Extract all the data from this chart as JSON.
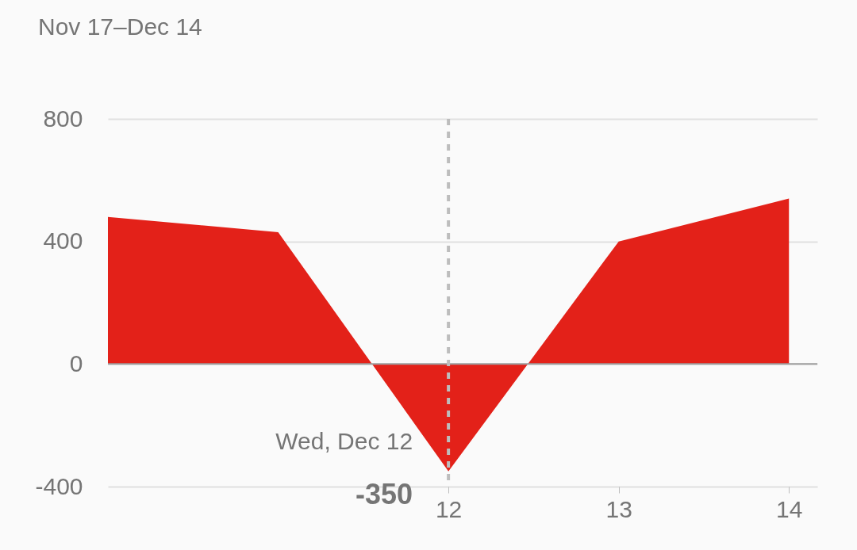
{
  "chart_data": {
    "type": "area",
    "subtitle": "Nov 17–Dec 14",
    "x": [
      "--12-10",
      "--12-11",
      "--12-12",
      "--12-13",
      "--12-14"
    ],
    "series": [
      {
        "color": "#e32119",
        "values": [
          480,
          430,
          -350,
          400,
          540
        ]
      }
    ],
    "xlim": [
      "--12-10",
      "--12-14T04:00"
    ],
    "xticks": [
      {
        "value": "--12-12",
        "label": "12"
      },
      {
        "value": "--12-13",
        "label": "13"
      },
      {
        "value": "--12-14",
        "label": "14"
      }
    ],
    "ylim": [
      -400,
      800
    ],
    "yticks": [
      -400,
      0,
      400,
      800
    ],
    "grid": "y",
    "ref_lines": [
      {
        "axis": "y",
        "value": 0,
        "line_style": "solid",
        "color": "#9e9e9e"
      },
      {
        "axis": "x",
        "value": "--12-12",
        "line_style": "dashed",
        "color": "#bdbdbd"
      }
    ],
    "annotations": [
      {
        "text": "Wed, Dec 12",
        "x": "--12-12",
        "y": -350
      },
      {
        "text": "-350",
        "x": "--12-12",
        "y": -350
      }
    ]
  }
}
